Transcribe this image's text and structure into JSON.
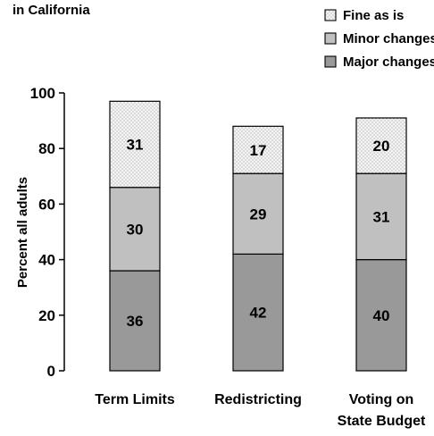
{
  "chart_data": {
    "type": "bar",
    "stacked": true,
    "title": "in California",
    "xlabel": "",
    "ylabel": "Percent all adults",
    "ylim": [
      0,
      100
    ],
    "yticks": [
      0,
      20,
      40,
      60,
      80,
      100
    ],
    "grid": false,
    "legend_position": "top-right",
    "categories": [
      [
        "Term Limits"
      ],
      [
        "Redistricting"
      ],
      [
        "Voting on",
        "State Budget"
      ]
    ],
    "series": [
      {
        "name": "Major changes needed",
        "values": [
          36,
          42,
          40
        ],
        "color": "#999999",
        "pattern": "solid"
      },
      {
        "name": "Minor changes needed",
        "values": [
          30,
          29,
          31
        ],
        "color": "#c0c0c0",
        "pattern": "solid"
      },
      {
        "name": "Fine as is",
        "values": [
          31,
          17,
          20
        ],
        "color": "#eeeeee",
        "pattern": "dots"
      }
    ],
    "legend_order": [
      "Fine as is",
      "Minor changes needed",
      "Major changes needed"
    ]
  }
}
